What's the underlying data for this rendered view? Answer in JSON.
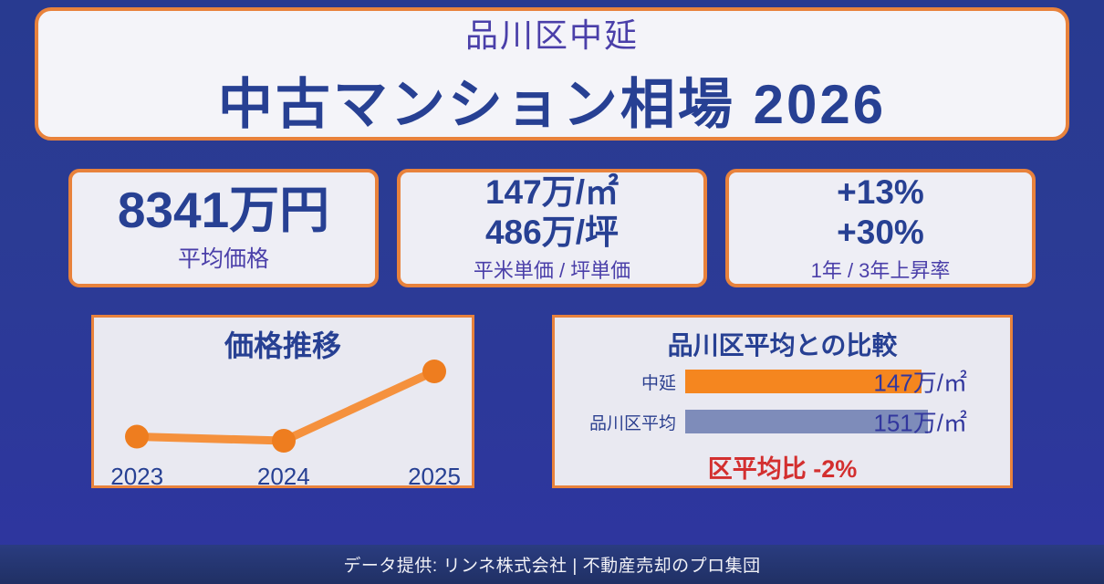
{
  "header": {
    "subtitle": "品川区中延",
    "title": "中古マンション相場 2026"
  },
  "stats": {
    "cards": [
      {
        "lines": [
          "8341万円"
        ],
        "caption": "平均価格"
      },
      {
        "lines": [
          "147万/㎡",
          "486万/坪"
        ],
        "caption": "平米単価 / 坪単価"
      },
      {
        "lines": [
          "+13%",
          "+30%"
        ],
        "caption": "1年 / 3年上昇率"
      }
    ]
  },
  "comparison_note": "区平均比 -2%",
  "footer": {
    "text": "データ提供: リンネ株式会社 | 不動産売却のプロ集団"
  },
  "colors": {
    "background_blue": "#2b3b94",
    "card_border_orange": "#e8823c",
    "card_background": "#eeeef5",
    "navy_text": "#274093",
    "purple_text": "#4a3fa9",
    "accent_orange": "#f5861f",
    "slate_bar": "#7e8cba",
    "line_orange": "#f5913d",
    "point_orange": "#ee7d1f",
    "negative_red": "#d32f2f",
    "footer_background": "#243672",
    "footer_text": "#f2f2f7"
  },
  "chart_data": [
    {
      "type": "line",
      "title": "価格推移",
      "x": [
        "2023",
        "2024",
        "2025"
      ],
      "values": [
        131,
        130,
        147
      ],
      "values_estimated": true,
      "unit": "万/㎡",
      "xlabel": "",
      "ylabel": "",
      "grid": false,
      "axis_ticks_shown": false,
      "line_color": "#f5913d",
      "point_color": "#ee7d1f"
    },
    {
      "type": "bar",
      "orientation": "horizontal",
      "title": "品川区平均との比較",
      "categories": [
        "中延",
        "品川区平均"
      ],
      "values": [
        147,
        151
      ],
      "value_labels": [
        "147万/㎡",
        "151万/㎡"
      ],
      "unit": "万/㎡",
      "bar_colors": [
        "#f5861f",
        "#7e8cba"
      ],
      "annotation": "区平均比 -2%",
      "annotation_color": "#d32f2f",
      "legend_position": "none"
    }
  ]
}
